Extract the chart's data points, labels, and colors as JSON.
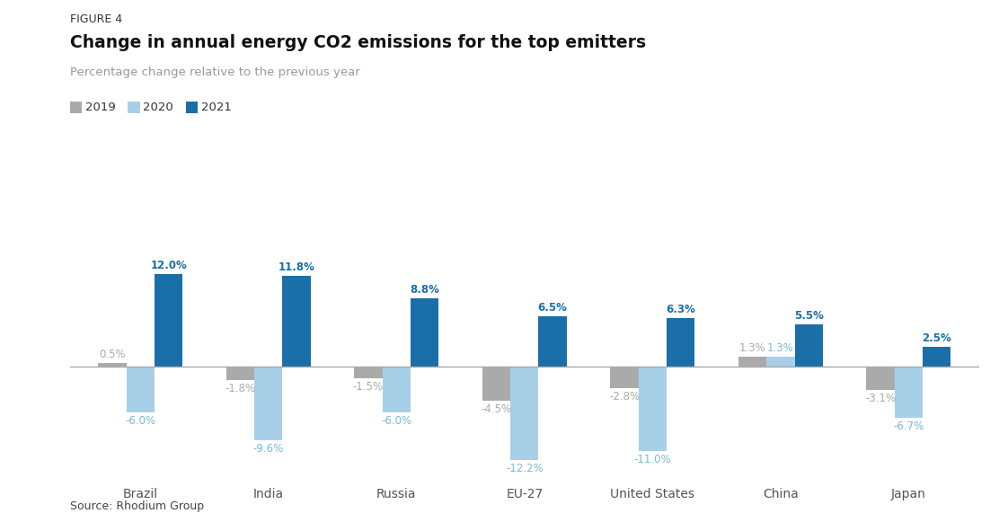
{
  "categories": [
    "Brazil",
    "India",
    "Russia",
    "EU-27",
    "United States",
    "China",
    "Japan"
  ],
  "values_2019": [
    0.5,
    -1.8,
    -1.5,
    -4.5,
    -2.8,
    1.3,
    -3.1
  ],
  "values_2020": [
    -6.0,
    -9.6,
    -6.0,
    -12.2,
    -11.0,
    1.3,
    -6.7
  ],
  "values_2021": [
    12.0,
    11.8,
    8.8,
    6.5,
    6.3,
    5.5,
    2.5
  ],
  "labels_2019": [
    "0.5%",
    "-1.8%",
    "-1.5%",
    "-4.5%",
    "-2.8%",
    "1.3%",
    "-3.1%"
  ],
  "labels_2020": [
    "-6.0%",
    "-9.6%",
    "-6.0%",
    "-12.2%",
    "-11.0%",
    "1.3%",
    "-6.7%"
  ],
  "labels_2021": [
    "12.0%",
    "11.8%",
    "8.8%",
    "6.5%",
    "6.3%",
    "5.5%",
    "2.5%"
  ],
  "color_2019": "#aaaaaa",
  "color_2020": "#a8cfe8",
  "color_2021": "#1b6fa8",
  "figure_label": "FIGURE 4",
  "title": "Change in annual energy CO2 emissions for the top emitters",
  "subtitle": "Percentage change relative to the previous year",
  "source": "Source: Rhodium Group",
  "legend_labels": [
    "2019",
    "2020",
    "2021"
  ],
  "ylim": [
    -14.5,
    14.5
  ],
  "bg_color": "#ffffff",
  "bar_width": 0.22,
  "label_color_2019": "#aaaaaa",
  "label_color_2020": "#7ab8d9",
  "label_color_2021": "#1b6fa8"
}
